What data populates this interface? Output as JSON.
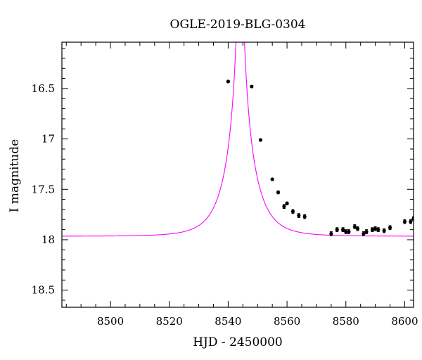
{
  "chart_data": {
    "type": "scatter",
    "title": "OGLE-2019-BLG-0304",
    "xlabel": "HJD - 2450000",
    "ylabel": "I magnitude",
    "xlim": [
      8483.5,
      8603
    ],
    "ylim": [
      16.04,
      18.67
    ],
    "y_inverted": true,
    "x_ticks": [
      8500,
      8520,
      8540,
      8560,
      8580,
      8600
    ],
    "x_tick_labels": [
      "8500",
      "8520",
      "8540",
      "8560",
      "8580",
      "8600"
    ],
    "y_ticks": [
      16.5,
      17,
      17.5,
      18,
      18.5
    ],
    "y_tick_labels": [
      "16.5",
      "17",
      "17.5",
      "18",
      "18.5"
    ],
    "grid": false,
    "legend": "none",
    "colors": {
      "model": "#ff00ff",
      "points": "#000000"
    },
    "series": [
      {
        "kind": "points",
        "x": [
          8540,
          8548,
          8551,
          8555,
          8557,
          8559,
          8560,
          8562,
          8564,
          8566,
          8575,
          8577,
          8579,
          8580,
          8581,
          8583,
          8584,
          8586,
          8587,
          8589,
          8590,
          8591,
          8593,
          8595,
          8600,
          8602,
          8603
        ],
        "y": [
          16.43,
          16.48,
          17.01,
          17.4,
          17.53,
          17.67,
          17.64,
          17.72,
          17.76,
          17.77,
          17.94,
          17.9,
          17.9,
          17.92,
          17.92,
          17.87,
          17.89,
          17.94,
          17.92,
          17.9,
          17.89,
          17.9,
          17.91,
          17.88,
          17.82,
          17.82,
          17.79
        ],
        "err": [
          0.01,
          0.01,
          0.01,
          0.01,
          0.015,
          0.02,
          0.015,
          0.02,
          0.02,
          0.02,
          0.02,
          0.02,
          0.02,
          0.02,
          0.02,
          0.02,
          0.02,
          0.02,
          0.02,
          0.02,
          0.02,
          0.02,
          0.02,
          0.02,
          0.02,
          0.02,
          0.02
        ]
      },
      {
        "kind": "model",
        "t0": 8544.1,
        "tE": 8.5,
        "u0": 0.01,
        "I_base": 17.965
      }
    ]
  }
}
